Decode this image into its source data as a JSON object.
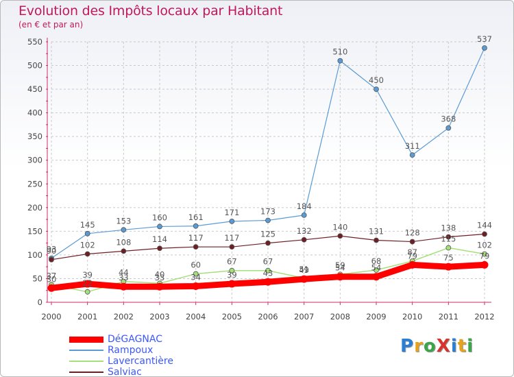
{
  "title": "Evolution des Impôts locaux par Habitant",
  "subtitle": "(en € et par an)",
  "logo": {
    "text": "ProXiti",
    "letters": [
      {
        "ch": "P",
        "color": "#2a7fd4"
      },
      {
        "ch": "r",
        "color": "#e8a21a"
      },
      {
        "ch": "o",
        "color": "#3aa64a"
      },
      {
        "ch": "X",
        "color": "#d9342b"
      },
      {
        "ch": "i",
        "color": "#2a7fd4"
      },
      {
        "ch": "t",
        "color": "#e8a21a"
      },
      {
        "ch": "i",
        "color": "#3aa64a"
      }
    ]
  },
  "chart_data": {
    "type": "line",
    "title": "Evolution des Impôts locaux par Habitant",
    "subtitle": "(en € et par an)",
    "xlabel": "",
    "ylabel": "",
    "x": [
      2000,
      2001,
      2002,
      2003,
      2004,
      2005,
      2006,
      2007,
      2008,
      2009,
      2010,
      2011,
      2012
    ],
    "ylim": [
      0,
      550
    ],
    "yticks": [
      0,
      50,
      100,
      150,
      200,
      250,
      300,
      350,
      400,
      450,
      500,
      550
    ],
    "grid": true,
    "legend_position": "bottom-left",
    "series": [
      {
        "name": "DéGAGNAC",
        "color": "#ff0000",
        "width": 9,
        "values": [
          30,
          39,
          33,
          33,
          34,
          39,
          43,
          49,
          54,
          54,
          79,
          75,
          79
        ],
        "labels": [
          "30",
          "39",
          "33",
          "33",
          "34",
          "39",
          "43",
          "49",
          "54",
          "54",
          "79",
          "75",
          "79"
        ]
      },
      {
        "name": "Rampoux",
        "color": "#5b9bd5",
        "width": 1.2,
        "values": [
          93,
          145,
          153,
          160,
          161,
          171,
          173,
          184,
          510,
          450,
          311,
          368,
          537
        ],
        "labels": [
          "93",
          "145",
          "153",
          "160",
          "161",
          "171",
          "173",
          "184",
          "510",
          "450",
          "311",
          "368",
          "537"
        ]
      },
      {
        "name": "Lavercantière",
        "color": "#a6e07a",
        "width": 1.5,
        "values": [
          37,
          22,
          44,
          40,
          60,
          67,
          67,
          51,
          59,
          68,
          87,
          115,
          102
        ],
        "labels": [
          "37",
          "22",
          "44",
          "40",
          "60",
          "67",
          "67",
          "51",
          "59",
          "68",
          "87",
          "115",
          "102"
        ]
      },
      {
        "name": "Salviac",
        "color": "#6e1f24",
        "width": 1.2,
        "values": [
          90,
          102,
          108,
          114,
          117,
          117,
          125,
          132,
          140,
          131,
          128,
          138,
          144
        ],
        "labels": [
          "90",
          "102",
          "108",
          "114",
          "117",
          "117",
          "125",
          "132",
          "140",
          "131",
          "128",
          "138",
          "144"
        ]
      }
    ]
  }
}
